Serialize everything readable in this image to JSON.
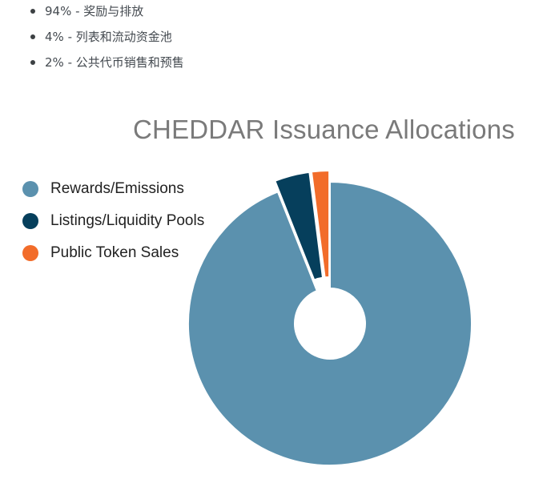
{
  "bullets": [
    "94% - 奖励与排放",
    "4% - 列表和流动资金池",
    "2% - 公共代币销售和预售"
  ],
  "chart_data": {
    "type": "pie",
    "variant": "donut",
    "title": "CHEDDAR Issuance Allocations",
    "legend_position": "left",
    "slices": [
      {
        "label": "Rewards/Emissions",
        "value": 94,
        "color": "#5b91ae",
        "exploded": false
      },
      {
        "label": "Listings/Liquidity Pools",
        "value": 4,
        "color": "#063f5c",
        "exploded": true
      },
      {
        "label": "Public Token Sales",
        "value": 2,
        "color": "#f26c2a",
        "exploded": true
      }
    ]
  }
}
